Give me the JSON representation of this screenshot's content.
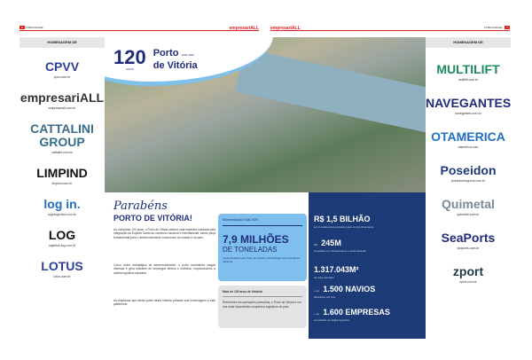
{
  "header": {
    "left_page": "6",
    "left_section": "PUBLICIDADE",
    "brand": "empresariALL",
    "right_section": "PUBLICIDADE",
    "right_page": "7"
  },
  "colors": {
    "navy": "#1c3a75",
    "light_blue": "#7fbfee",
    "accent_red": "#d22"
  },
  "left_sidebar": {
    "heading": "HOMENAGEM DE",
    "logos": [
      {
        "name": "CPVV",
        "url": "cpvv.com.br",
        "color": "#2b3f9a"
      },
      {
        "name": "empresariALL",
        "url": "empresariall.com.br",
        "color": "#333"
      },
      {
        "name": "CATTALINI GROUP",
        "url": "cattalini.com.br",
        "color": "#3a6b8a"
      },
      {
        "name": "LIMPIND",
        "url": "limpind.com.br",
        "color": "#111"
      },
      {
        "name": "log in.",
        "url": "loginlogistica.com.br",
        "color": "#1e6fc2"
      },
      {
        "name": "LOG",
        "url": "logistica-log.com.br",
        "color": "#111"
      },
      {
        "name": "LOTUS",
        "url": "lotus.com.br",
        "color": "#2b3f9a"
      }
    ]
  },
  "right_sidebar": {
    "heading": "HOMENAGEM DE",
    "logos": [
      {
        "name": "MULTILIFT",
        "url": "multilift.com.br",
        "color": "#1a8a5a"
      },
      {
        "name": "NAVEGANTES",
        "url": "navegantes.com.br",
        "color": "#1e2c7a"
      },
      {
        "name": "OTAMERICA",
        "url": "otamerica.com",
        "color": "#1e6fc2"
      },
      {
        "name": "Poseidon",
        "url": "poseidonseguros.com.br",
        "color": "#1e3a7a"
      },
      {
        "name": "Quimetal",
        "url": "quimetal.com.br",
        "color": "#7a8a96"
      },
      {
        "name": "SeaPorts",
        "url": "seaports.com.br",
        "color": "#1e2c7a"
      },
      {
        "name": "zport",
        "url": "zport.com.br",
        "color": "#1e3a4a"
      }
    ]
  },
  "hero": {
    "number": "120",
    "number_caption": "ANOS",
    "title_line1": "Porto",
    "title_suffix": "1906-2026",
    "title_line2": "de Vitória"
  },
  "article": {
    "script_heading": "Parabéns",
    "heading": "PORTO DE VITÓRIA!",
    "paragraphs": [
      "Ao completar 120 anos, o Porto de Vitória celebra uma trajetória marcada pela integração do Espírito Santo ao comércio nacional e internacional, sendo peça fundamental para o desenvolvimento econômico do estado e do país.",
      "Como motor estratégico do desenvolvimento, o porto movimenta cargas diversas e gera milhares de empregos diretos e indiretos, impulsionando a cadeia logística capixaba.",
      "As empresas que fazem parte desta história prestam sua homenagem a este patrimônio."
    ]
  },
  "highlight_box": {
    "label": "Movimentação Total 2025",
    "value": "7,9 MILHÕES",
    "unit": "DE TONELADAS",
    "note": "movimentadas pelo Porto de Vitória, consolidando sua relevância nacional"
  },
  "gray_box": {
    "title": "Mais de 120 anos de história",
    "text": "Referência em operações portuárias, o Porto de Vitória é um dos mais importantes complexos logísticos do país."
  },
  "stats": [
    {
      "prefix": "",
      "value": "R$ 1,5 BILHÃO",
      "note": "em investimentos previstos para os próximos anos"
    },
    {
      "prefix": "R$",
      "value": "245M",
      "note": "investidos em infraestrutura e modernização"
    },
    {
      "prefix": "",
      "value": "1.317.043M²",
      "note": "de área portuária"
    },
    {
      "prefix": "+ de",
      "value": "1.500 NAVIOS",
      "note": "atracados por ano"
    },
    {
      "prefix": "+ de",
      "value": "1.600 EMPRESAS",
      "note": "envolvidas na cadeia logística"
    }
  ]
}
